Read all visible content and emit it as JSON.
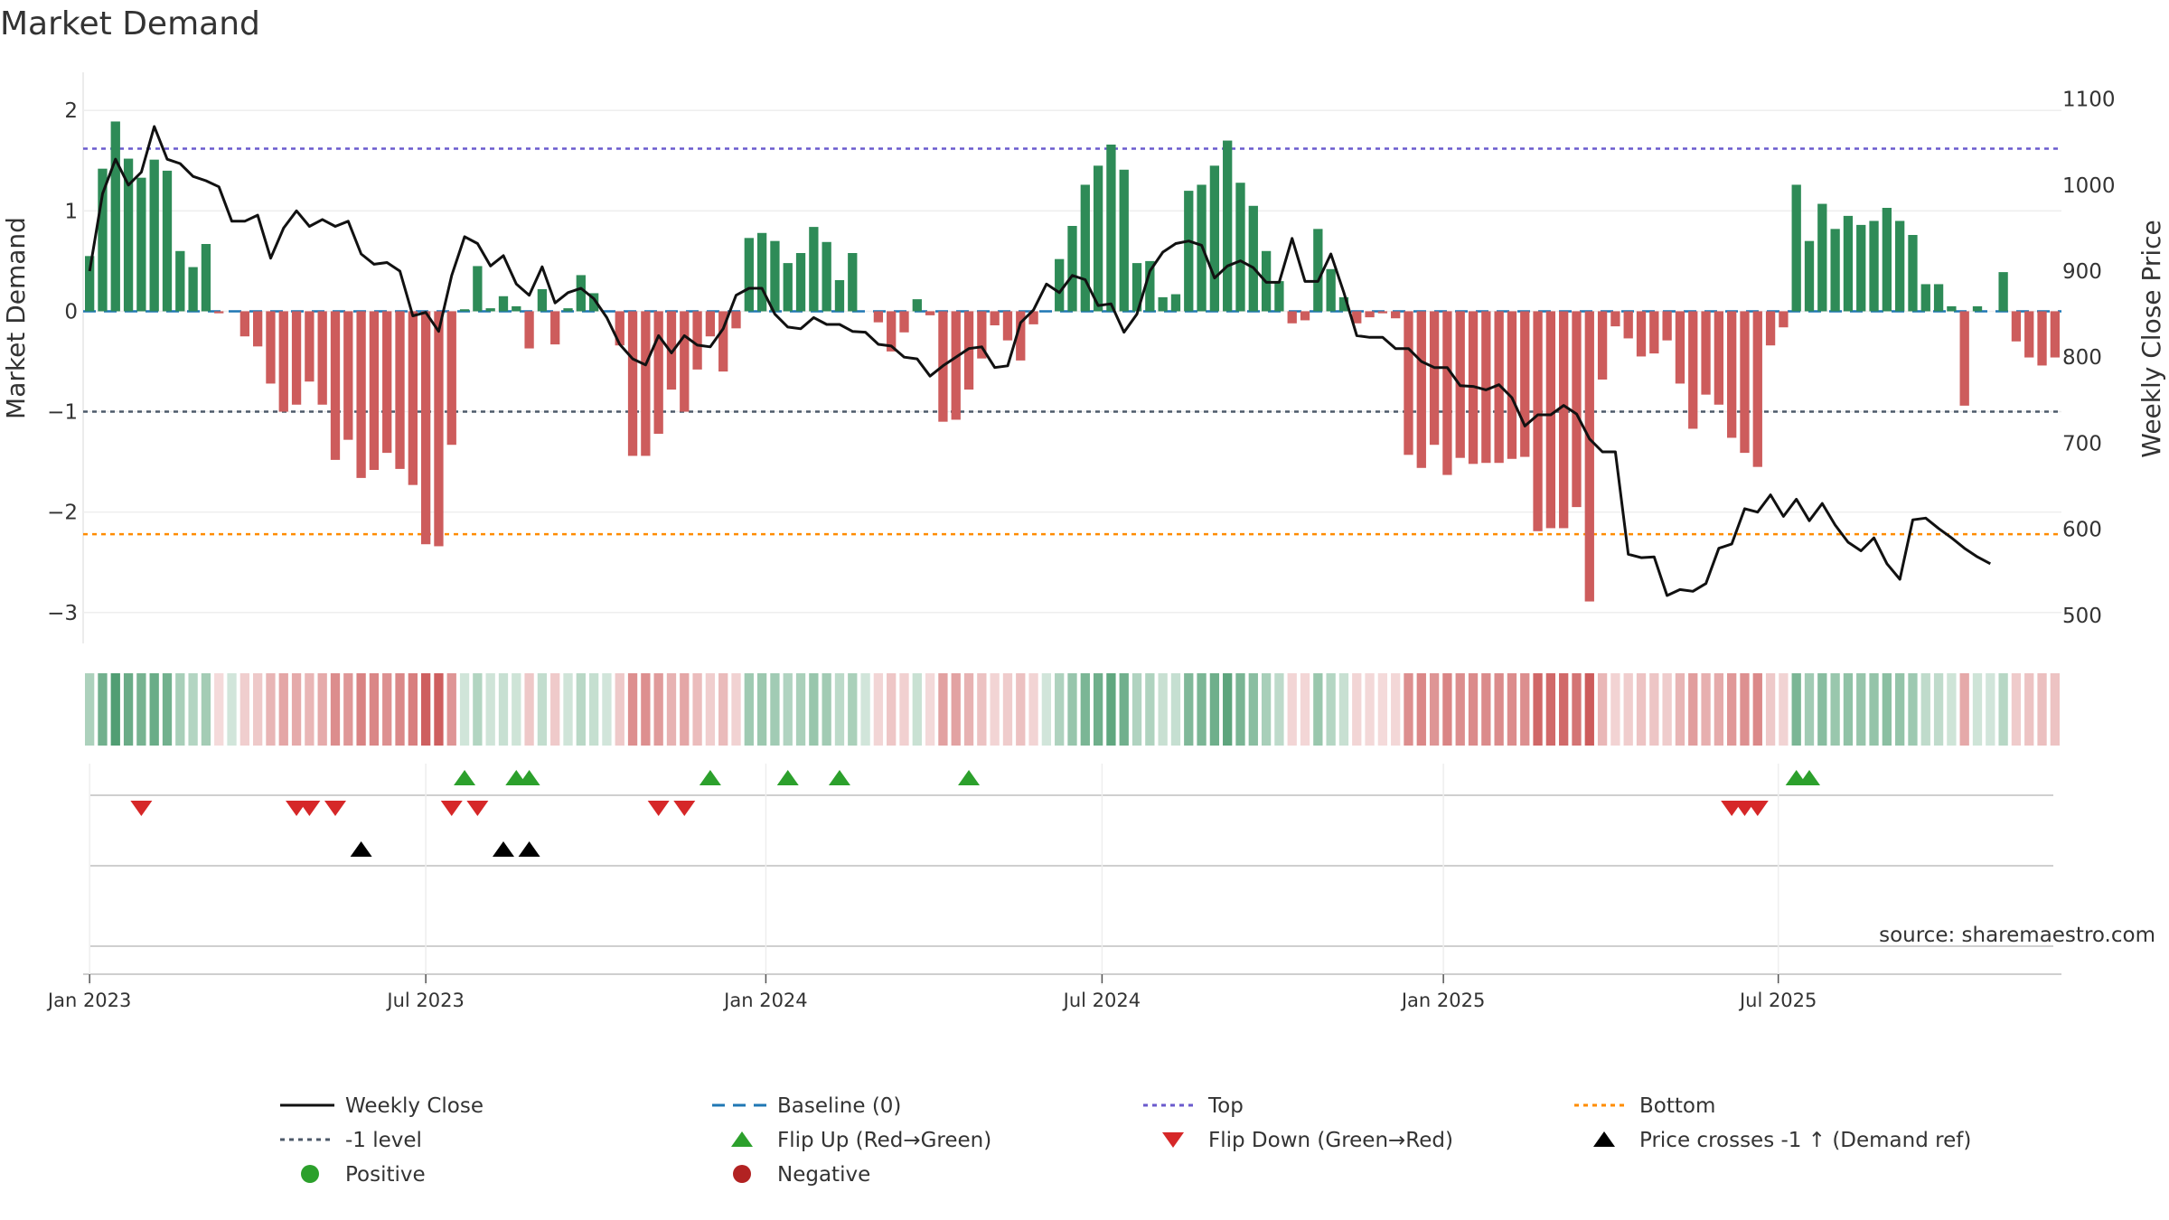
{
  "chart_data": {
    "type": "bar",
    "title": "Market Demand",
    "source": "source: sharemaestro.com",
    "ylabel_left": "Market Demand",
    "ylabel_right": "Weekly Close Price",
    "ylim_left": [
      -3.2,
      2.2
    ],
    "ylim_right": [
      480,
      1110
    ],
    "yticks_left": [
      {
        "v": 2,
        "label": "2"
      },
      {
        "v": 1,
        "label": "1"
      },
      {
        "v": 0,
        "label": "0"
      },
      {
        "v": -1,
        "label": "−1"
      },
      {
        "v": -2,
        "label": "−2"
      },
      {
        "v": -3,
        "label": "−3"
      }
    ],
    "yticks_right": [
      {
        "v": 1100,
        "label": "1100"
      },
      {
        "v": 1000,
        "label": "1000"
      },
      {
        "v": 900,
        "label": "900"
      },
      {
        "v": 800,
        "label": "800"
      },
      {
        "v": 700,
        "label": "700"
      },
      {
        "v": 600,
        "label": "600"
      },
      {
        "v": 500,
        "label": "500"
      }
    ],
    "xticks": [
      {
        "week": 1,
        "label": "Jan 2023"
      },
      {
        "week": 27,
        "label": "Jul 2023"
      },
      {
        "week": 53.3,
        "label": "Jan 2024"
      },
      {
        "week": 79.3,
        "label": "Jul 2024"
      },
      {
        "week": 105.7,
        "label": "Jan 2025"
      },
      {
        "week": 131.6,
        "label": "Jul 2025"
      }
    ],
    "reference_lines": {
      "top": 1.62,
      "bottom": -2.22,
      "minus_one": -1,
      "baseline": 0
    },
    "demand": [
      0.55,
      1.42,
      1.89,
      1.52,
      1.33,
      1.51,
      1.4,
      0.6,
      0.44,
      0.67,
      -0.02,
      0,
      -0.25,
      -0.35,
      -0.72,
      -1.0,
      -0.93,
      -0.7,
      -0.93,
      -1.48,
      -1.28,
      -1.66,
      -1.58,
      -1.41,
      -1.57,
      -1.73,
      -2.32,
      -2.34,
      -1.33,
      0.02,
      0.45,
      0.03,
      0.15,
      0.05,
      -0.37,
      0.22,
      -0.33,
      0.03,
      0.36,
      0.18,
      0,
      -0.34,
      -1.44,
      -1.44,
      -1.22,
      -0.78,
      -1.0,
      -0.58,
      -0.25,
      -0.6,
      -0.17,
      0.73,
      0.78,
      0.7,
      0.48,
      0.58,
      0.84,
      0.69,
      0.31,
      0.58,
      0,
      -0.11,
      -0.4,
      -0.21,
      0.12,
      -0.04,
      -1.1,
      -1.08,
      -0.78,
      -0.47,
      -0.14,
      -0.29,
      -0.49,
      -0.13,
      0,
      0.52,
      0.85,
      1.26,
      1.45,
      1.66,
      1.41,
      0.48,
      0.5,
      0.14,
      0.17,
      1.2,
      1.26,
      1.45,
      1.7,
      1.28,
      1.05,
      0.6,
      0.3,
      -0.12,
      -0.09,
      0.82,
      0.42,
      0.14,
      -0.12,
      -0.06,
      -0.02,
      -0.07,
      -1.43,
      -1.56,
      -1.33,
      -1.63,
      -1.46,
      -1.52,
      -1.51,
      -1.51,
      -1.47,
      -1.45,
      -2.19,
      -2.16,
      -2.16,
      -1.95,
      -2.89,
      -0.68,
      -0.15,
      -0.27,
      -0.45,
      -0.42,
      -0.29,
      -0.72,
      -1.17,
      -0.83,
      -0.93,
      -1.26,
      -1.41,
      -1.55,
      -0.34,
      -0.16,
      1.26,
      0.7,
      1.07,
      0.82,
      0.95,
      0.86,
      0.9,
      1.03,
      0.9,
      0.76,
      0.27,
      0.27,
      0.05,
      -0.94,
      0.05,
      0,
      0.39,
      -0.3,
      -0.46,
      -0.54,
      -0.46
    ],
    "weekly_close": [
      900,
      990,
      1030,
      1000,
      1015,
      1068,
      1030,
      1025,
      1010,
      1005,
      998,
      958,
      958,
      965,
      915,
      950,
      970,
      952,
      960,
      952,
      958,
      920,
      908,
      910,
      900,
      848,
      852,
      830,
      895,
      940,
      932,
      906,
      918,
      885,
      872,
      905,
      863,
      875,
      880,
      868,
      846,
      815,
      798,
      791,
      825,
      805,
      825,
      814,
      812,
      833,
      872,
      880,
      880,
      850,
      835,
      833,
      846,
      838,
      838,
      830,
      829,
      815,
      813,
      800,
      798,
      778,
      790,
      800,
      810,
      812,
      788,
      790,
      840,
      855,
      885,
      875,
      895,
      890,
      860,
      862,
      829,
      850,
      900,
      922,
      932,
      935,
      930,
      892,
      906,
      912,
      904,
      887,
      887,
      938,
      888,
      888,
      920,
      875,
      825,
      823,
      823,
      810,
      810,
      795,
      788,
      788,
      767,
      766,
      762,
      768,
      753,
      720,
      733,
      733,
      744,
      734,
      705,
      690,
      690,
      571,
      567,
      568,
      523,
      530,
      528,
      537,
      578,
      583,
      624,
      620,
      640,
      615,
      635,
      610,
      630,
      605,
      585,
      575,
      590,
      560,
      542,
      611,
      613,
      601,
      590,
      578,
      568,
      560
    ],
    "flip_up_weeks": [
      30,
      34,
      35,
      49,
      55,
      59,
      69,
      133,
      134
    ],
    "flip_down_weeks": [
      5,
      17,
      18,
      20,
      29,
      31,
      45,
      47,
      128,
      129,
      130
    ],
    "price_cross_weeks": [
      22,
      33,
      35
    ]
  },
  "colors": {
    "positive_bar": "#2e8b57",
    "negative_bar": "#cd5c5c",
    "close_line": "#111111",
    "baseline": "#1f77b4",
    "top_line": "#6a5acd",
    "bottom_line": "#ff8c00",
    "minus_one_line": "#4d5a6a",
    "flip_up": "#2ca02c",
    "flip_down": "#d62728",
    "price_cross": "#000000",
    "positive_dot": "#2ca02c",
    "negative_dot": "#b22222"
  },
  "legend": [
    {
      "key": "close",
      "label": "Weekly Close"
    },
    {
      "key": "baseline",
      "label": "Baseline (0)"
    },
    {
      "key": "top",
      "label": "Top"
    },
    {
      "key": "bottom",
      "label": "Bottom"
    },
    {
      "key": "minus_one",
      "label": "-1 level"
    },
    {
      "key": "flip_up",
      "label": "Flip Up (Red→Green)"
    },
    {
      "key": "flip_down",
      "label": "Flip Down (Green→Red)"
    },
    {
      "key": "price_cross",
      "label": "Price crosses -1 ↑ (Demand ref)"
    },
    {
      "key": "positive",
      "label": "Positive"
    },
    {
      "key": "negative",
      "label": "Negative"
    }
  ]
}
